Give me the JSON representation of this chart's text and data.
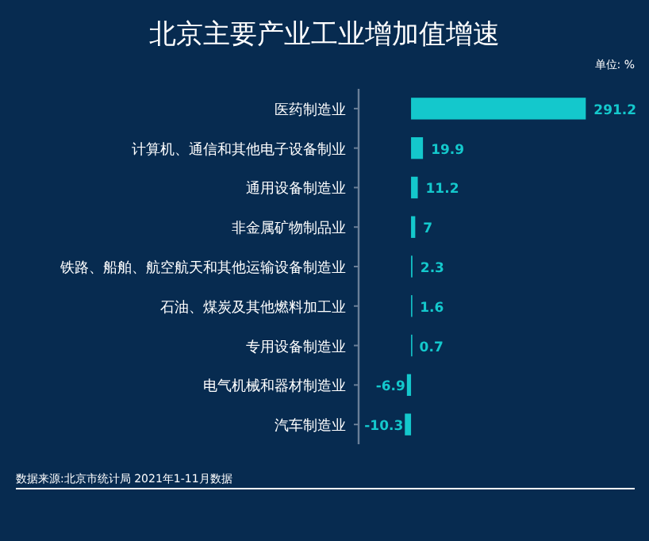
{
  "chart_data": {
    "type": "bar",
    "orientation": "horizontal",
    "title": "北京主要产业工业增加值增速",
    "categories": [
      "医药制造业",
      "计算机、通信和其他电子设备制业",
      "通用设备制造业",
      "非金属矿物制品业",
      "铁路、船舶、航空航天和其他运输设备制造业",
      "石油、煤炭及其他燃料加工业",
      "专用设备制造业",
      "电气机械和器材制造业",
      "汽车制造业"
    ],
    "values": [
      291.2,
      19.9,
      11.2,
      7,
      2.3,
      1.6,
      0.7,
      -6.9,
      -10.3
    ],
    "color": "#14c8cc",
    "data_labels": true,
    "annotations": [
      "单位: %",
      "数据来源:北京市统计局  2021年1-11月数据"
    ]
  }
}
